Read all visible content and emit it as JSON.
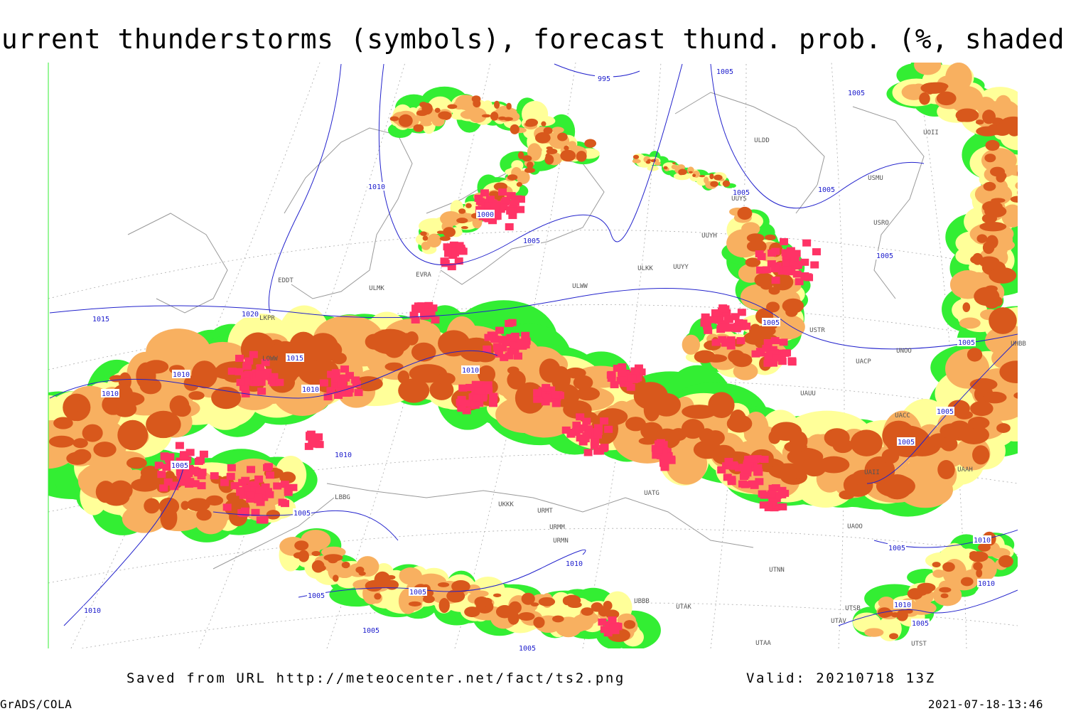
{
  "header": {
    "title": "Current thunderstorms (symbols), forecast thund. prob. (%, shaded)"
  },
  "footer": {
    "source": "Saved from URL http://meteocenter.net/fact/ts2.png",
    "valid": "Valid: 20210718 13Z",
    "software": "GrADS/COLA",
    "timestamp": "2021-07-18-13:46"
  },
  "map": {
    "isobar_labels": [
      "995",
      "1005",
      "1005",
      "1010",
      "1000",
      "1005",
      "1005",
      "1005",
      "1005",
      "1015",
      "1020",
      "1015",
      "1010",
      "1010",
      "1010",
      "1010",
      "1005",
      "1005",
      "1005",
      "1005",
      "1010",
      "1005",
      "1005",
      "1005",
      "1010",
      "1010",
      "1005",
      "1005",
      "1010",
      "1005",
      "1005",
      "1010",
      "1010",
      "1005"
    ],
    "station_labels": [
      "ULDD",
      "UUYS",
      "USMU",
      "UUYH",
      "USRO",
      "ULKK",
      "UUYY",
      "ULWW",
      "EDDT",
      "ULMK",
      "EVRA",
      "LKPR",
      "LOWW",
      "USTR",
      "UNOO",
      "UACP",
      "UAUU",
      "UACC",
      "UAAH",
      "UAOO",
      "UTNN",
      "UATG",
      "URMT",
      "URMM",
      "URMN",
      "UTAK",
      "UTAA",
      "LBBG",
      "UKKK",
      "UBBB",
      "UTAV",
      "UTST",
      "UTSB",
      "UAII",
      "UHBB",
      "UOII"
    ]
  }
}
